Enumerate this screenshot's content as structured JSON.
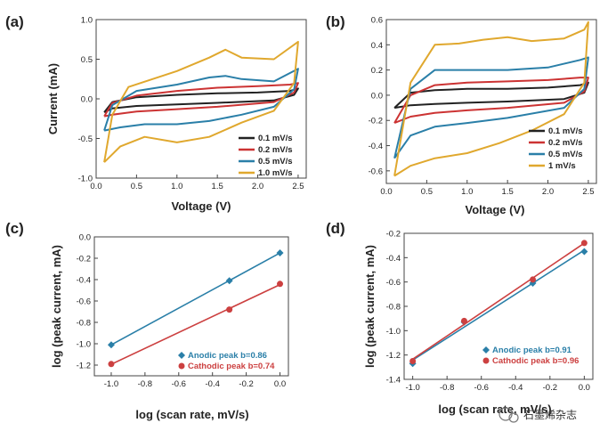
{
  "chart_data": [
    {
      "panel": "(a)",
      "type": "line",
      "xlabel": "Voltage (V)",
      "ylabel": "Current (mA)",
      "xlim": [
        0,
        2.6
      ],
      "ylim": [
        -1.0,
        1.0
      ],
      "xticks": [
        0.0,
        0.5,
        1.0,
        1.5,
        2.0,
        2.5
      ],
      "xtick_labels": [
        "0.0",
        "0.5",
        "1.0",
        "1.5",
        "2.0",
        "2.5"
      ],
      "yticks": [
        -1.0,
        -0.5,
        0.0,
        0.5,
        1.0
      ],
      "ytick_labels": [
        "-1.0",
        "-0.5",
        "0.0",
        "0.5",
        "1.0"
      ],
      "legend_position": "bottom-right",
      "series": [
        {
          "name": "0.1 mV/s",
          "color": "#222222",
          "points": [
            [
              0.1,
              -0.17
            ],
            [
              0.2,
              -0.04
            ],
            [
              0.5,
              0.02
            ],
            [
              1.0,
              0.05
            ],
            [
              1.5,
              0.07
            ],
            [
              2.0,
              0.08
            ],
            [
              2.4,
              0.1
            ],
            [
              2.5,
              0.13
            ],
            [
              2.45,
              0.05
            ],
            [
              2.2,
              -0.02
            ],
            [
              1.5,
              -0.05
            ],
            [
              1.0,
              -0.07
            ],
            [
              0.5,
              -0.09
            ],
            [
              0.2,
              -0.12
            ],
            [
              0.1,
              -0.17
            ]
          ]
        },
        {
          "name": "0.2 mV/s",
          "color": "#cc3333",
          "points": [
            [
              0.1,
              -0.22
            ],
            [
              0.2,
              -0.05
            ],
            [
              0.5,
              0.04
            ],
            [
              1.0,
              0.1
            ],
            [
              1.5,
              0.14
            ],
            [
              2.0,
              0.16
            ],
            [
              2.4,
              0.18
            ],
            [
              2.5,
              0.2
            ],
            [
              2.45,
              0.08
            ],
            [
              2.2,
              -0.04
            ],
            [
              1.5,
              -0.1
            ],
            [
              1.0,
              -0.13
            ],
            [
              0.5,
              -0.16
            ],
            [
              0.2,
              -0.2
            ],
            [
              0.1,
              -0.22
            ]
          ]
        },
        {
          "name": "0.5 mV/s",
          "color": "#2a7fa8",
          "points": [
            [
              0.1,
              -0.4
            ],
            [
              0.2,
              -0.08
            ],
            [
              0.5,
              0.1
            ],
            [
              1.0,
              0.18
            ],
            [
              1.4,
              0.27
            ],
            [
              1.6,
              0.29
            ],
            [
              1.8,
              0.25
            ],
            [
              2.2,
              0.22
            ],
            [
              2.5,
              0.38
            ],
            [
              2.45,
              0.12
            ],
            [
              2.2,
              -0.1
            ],
            [
              1.8,
              -0.2
            ],
            [
              1.4,
              -0.28
            ],
            [
              1.0,
              -0.32
            ],
            [
              0.6,
              -0.32
            ],
            [
              0.3,
              -0.36
            ],
            [
              0.1,
              -0.4
            ]
          ]
        },
        {
          "name": "1.0 mV/s",
          "color": "#e0a82e",
          "points": [
            [
              0.1,
              -0.8
            ],
            [
              0.2,
              -0.2
            ],
            [
              0.4,
              0.15
            ],
            [
              1.0,
              0.35
            ],
            [
              1.4,
              0.52
            ],
            [
              1.6,
              0.62
            ],
            [
              1.8,
              0.52
            ],
            [
              2.2,
              0.5
            ],
            [
              2.5,
              0.72
            ],
            [
              2.45,
              0.2
            ],
            [
              2.2,
              -0.15
            ],
            [
              1.8,
              -0.3
            ],
            [
              1.4,
              -0.48
            ],
            [
              1.0,
              -0.55
            ],
            [
              0.6,
              -0.48
            ],
            [
              0.3,
              -0.6
            ],
            [
              0.1,
              -0.8
            ]
          ]
        }
      ]
    },
    {
      "panel": "(b)",
      "type": "line",
      "xlabel": "Voltage (V)",
      "ylabel": "",
      "xlim": [
        0,
        2.6
      ],
      "ylim": [
        -0.7,
        0.6
      ],
      "xticks": [
        0.0,
        0.5,
        1.0,
        1.5,
        2.0,
        2.5
      ],
      "xtick_labels": [
        "0.0",
        "0.5",
        "1.0",
        "1.5",
        "2.0",
        "2.5"
      ],
      "yticks": [
        -0.6,
        -0.4,
        -0.2,
        0.0,
        0.2,
        0.4,
        0.6
      ],
      "ytick_labels": [
        "-0.6",
        "-0.4",
        "-0.2",
        "0.0",
        "0.2",
        "0.4",
        "0.6"
      ],
      "legend_position": "bottom-right",
      "series": [
        {
          "name": "0.1 mV/s",
          "color": "#222222",
          "points": [
            [
              0.1,
              -0.1
            ],
            [
              0.3,
              0.02
            ],
            [
              0.6,
              0.04
            ],
            [
              1.0,
              0.05
            ],
            [
              1.5,
              0.05
            ],
            [
              2.0,
              0.06
            ],
            [
              2.4,
              0.08
            ],
            [
              2.5,
              0.1
            ],
            [
              2.45,
              0.02
            ],
            [
              2.2,
              -0.03
            ],
            [
              1.5,
              -0.05
            ],
            [
              1.0,
              -0.06
            ],
            [
              0.6,
              -0.07
            ],
            [
              0.3,
              -0.08
            ],
            [
              0.1,
              -0.1
            ]
          ]
        },
        {
          "name": "0.2 mV/s",
          "color": "#cc3333",
          "points": [
            [
              0.1,
              -0.22
            ],
            [
              0.3,
              0.0
            ],
            [
              0.6,
              0.08
            ],
            [
              1.0,
              0.1
            ],
            [
              1.5,
              0.11
            ],
            [
              2.0,
              0.12
            ],
            [
              2.4,
              0.14
            ],
            [
              2.5,
              0.14
            ],
            [
              2.45,
              0.03
            ],
            [
              2.2,
              -0.06
            ],
            [
              1.5,
              -0.1
            ],
            [
              1.0,
              -0.12
            ],
            [
              0.6,
              -0.14
            ],
            [
              0.3,
              -0.17
            ],
            [
              0.1,
              -0.22
            ]
          ]
        },
        {
          "name": "0.5 mV/s",
          "color": "#2a7fa8",
          "points": [
            [
              0.1,
              -0.5
            ],
            [
              0.3,
              0.05
            ],
            [
              0.6,
              0.2
            ],
            [
              1.0,
              0.2
            ],
            [
              1.5,
              0.2
            ],
            [
              2.0,
              0.22
            ],
            [
              2.4,
              0.28
            ],
            [
              2.5,
              0.3
            ],
            [
              2.45,
              0.05
            ],
            [
              2.2,
              -0.1
            ],
            [
              1.5,
              -0.18
            ],
            [
              1.0,
              -0.22
            ],
            [
              0.6,
              -0.25
            ],
            [
              0.3,
              -0.32
            ],
            [
              0.1,
              -0.5
            ]
          ]
        },
        {
          "name": "1 mV/s",
          "color": "#e0a82e",
          "points": [
            [
              0.1,
              -0.64
            ],
            [
              0.3,
              0.1
            ],
            [
              0.6,
              0.4
            ],
            [
              0.9,
              0.41
            ],
            [
              1.2,
              0.44
            ],
            [
              1.5,
              0.46
            ],
            [
              1.8,
              0.43
            ],
            [
              2.2,
              0.45
            ],
            [
              2.45,
              0.52
            ],
            [
              2.5,
              0.58
            ],
            [
              2.45,
              0.1
            ],
            [
              2.2,
              -0.15
            ],
            [
              1.8,
              -0.28
            ],
            [
              1.4,
              -0.38
            ],
            [
              1.0,
              -0.46
            ],
            [
              0.6,
              -0.5
            ],
            [
              0.3,
              -0.56
            ],
            [
              0.1,
              -0.64
            ]
          ]
        }
      ]
    },
    {
      "panel": "(c)",
      "type": "scatter",
      "xlabel": "log (scan rate, mV/s)",
      "ylabel": "log (peak current, mA)",
      "xlim": [
        -1.1,
        0.05
      ],
      "ylim": [
        -1.3,
        0.0
      ],
      "xticks": [
        -1.0,
        -0.8,
        -0.6,
        -0.4,
        -0.2,
        0.0
      ],
      "xtick_labels": [
        "-1.0",
        "-0.8",
        "-0.6",
        "-0.4",
        "-0.2",
        "0.0"
      ],
      "yticks": [
        -1.2,
        -1.0,
        -0.8,
        -0.6,
        -0.4,
        -0.2,
        0.0
      ],
      "ytick_labels": [
        "-1.2",
        "-1.0",
        "-0.8",
        "-0.6",
        "-0.4",
        "-0.2",
        "0.0"
      ],
      "legend_position": "bottom-right",
      "series": [
        {
          "name": "Anodic peak b=0.86",
          "color": "#2a7fa8",
          "marker": "diamond",
          "x": [
            -1.0,
            -0.3,
            0.0
          ],
          "y": [
            -1.01,
            -0.41,
            -0.15
          ]
        },
        {
          "name": "Cathodic peak b=0.74",
          "color": "#cc4040",
          "marker": "circle",
          "x": [
            -1.0,
            -0.3,
            0.0
          ],
          "y": [
            -1.19,
            -0.68,
            -0.44
          ]
        }
      ]
    },
    {
      "panel": "(d)",
      "type": "scatter",
      "xlabel": "log (scan rate, mV/s)",
      "ylabel": "log (peak current, mA)",
      "xlim": [
        -1.05,
        0.05
      ],
      "ylim": [
        -1.4,
        -0.2
      ],
      "xticks": [
        -1.0,
        -0.8,
        -0.6,
        -0.4,
        -0.2,
        0.0
      ],
      "xtick_labels": [
        "-1.0",
        "-0.8",
        "-0.6",
        "-0.4",
        "-0.2",
        "0.0"
      ],
      "yticks": [
        -1.4,
        -1.2,
        -1.0,
        -0.8,
        -0.6,
        -0.4,
        -0.2
      ],
      "ytick_labels": [
        "-1.4",
        "-1.2",
        "-1.0",
        "-0.8",
        "-0.6",
        "-0.4",
        "-0.2"
      ],
      "legend_position": "bottom-right",
      "series": [
        {
          "name": "Anodic peak b=0.91",
          "color": "#2a7fa8",
          "marker": "diamond",
          "x": [
            -1.0,
            -0.7,
            -0.3,
            0.0
          ],
          "y": [
            -1.27,
            -0.93,
            -0.61,
            -0.35
          ]
        },
        {
          "name": "Cathodic peak b=0.96",
          "color": "#cc4040",
          "marker": "circle",
          "x": [
            -1.0,
            -0.7,
            -0.3,
            0.0
          ],
          "y": [
            -1.25,
            -0.92,
            -0.58,
            -0.28
          ]
        }
      ]
    }
  ],
  "watermark": {
    "text": "石墨烯杂志"
  }
}
